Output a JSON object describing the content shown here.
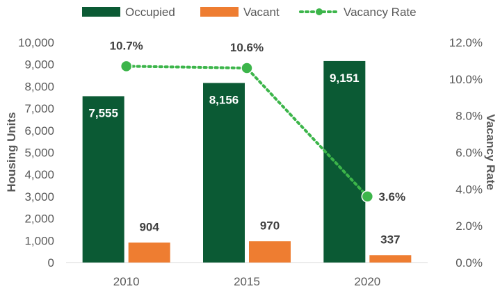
{
  "chart_data": {
    "type": "bar",
    "categories": [
      "2010",
      "2015",
      "2020"
    ],
    "series": [
      {
        "name": "Occupied",
        "axis": "left",
        "values": [
          7555,
          8156,
          9151
        ],
        "labels": [
          "7,555",
          "8,156",
          "9,151"
        ],
        "color": "#0b5a34"
      },
      {
        "name": "Vacant",
        "axis": "left",
        "values": [
          904,
          970,
          337
        ],
        "labels": [
          "904",
          "970",
          "337"
        ],
        "color": "#ee7d31"
      },
      {
        "name": "Vacancy Rate",
        "type": "line",
        "axis": "right",
        "values": [
          10.7,
          10.6,
          3.6
        ],
        "labels": [
          "10.7%",
          "10.6%",
          "3.6%"
        ],
        "color": "#3cb54a"
      }
    ],
    "ylabel": "Housing Units",
    "y2label": "Vacancy Rate",
    "ylim": [
      0,
      10000
    ],
    "y2lim": [
      0,
      12
    ],
    "y_ticks": [
      0,
      1000,
      2000,
      3000,
      4000,
      5000,
      6000,
      7000,
      8000,
      9000,
      10000
    ],
    "y_tick_labels": [
      "0",
      "1,000",
      "2,000",
      "3,000",
      "4,000",
      "5,000",
      "6,000",
      "7,000",
      "8,000",
      "9,000",
      "10,000"
    ],
    "y2_ticks": [
      0,
      2,
      4,
      6,
      8,
      10,
      12
    ],
    "y2_tick_labels": [
      "0.0%",
      "2.0%",
      "4.0%",
      "6.0%",
      "8.0%",
      "10.0%",
      "12.0%"
    ],
    "legend": [
      "Occupied",
      "Vacant",
      "Vacancy Rate"
    ],
    "legend_position": "top",
    "grid": false
  }
}
